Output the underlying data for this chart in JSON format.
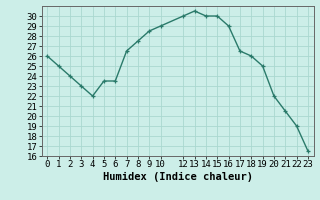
{
  "x": [
    0,
    1,
    2,
    3,
    4,
    5,
    6,
    7,
    8,
    9,
    10,
    12,
    13,
    14,
    15,
    16,
    17,
    18,
    19,
    20,
    21,
    22,
    23
  ],
  "y": [
    26,
    25,
    24,
    23,
    22,
    23.5,
    23.5,
    26.5,
    27.5,
    28.5,
    29,
    30,
    30.5,
    30,
    30,
    29,
    26.5,
    26,
    25,
    22,
    20.5,
    19,
    16.5
  ],
  "line_color": "#2a7a6a",
  "marker": "+",
  "bg_color": "#cceee8",
  "grid_color": "#aad8d0",
  "xlabel": "Humidex (Indice chaleur)",
  "ylim": [
    16,
    31
  ],
  "xlim": [
    -0.5,
    23.5
  ],
  "yticks": [
    16,
    17,
    18,
    19,
    20,
    21,
    22,
    23,
    24,
    25,
    26,
    27,
    28,
    29,
    30
  ],
  "xticks": [
    0,
    1,
    2,
    3,
    4,
    5,
    6,
    7,
    8,
    9,
    10,
    12,
    13,
    14,
    15,
    16,
    17,
    18,
    19,
    20,
    21,
    22,
    23
  ],
  "tick_fontsize": 6.5,
  "label_fontsize": 7.5
}
